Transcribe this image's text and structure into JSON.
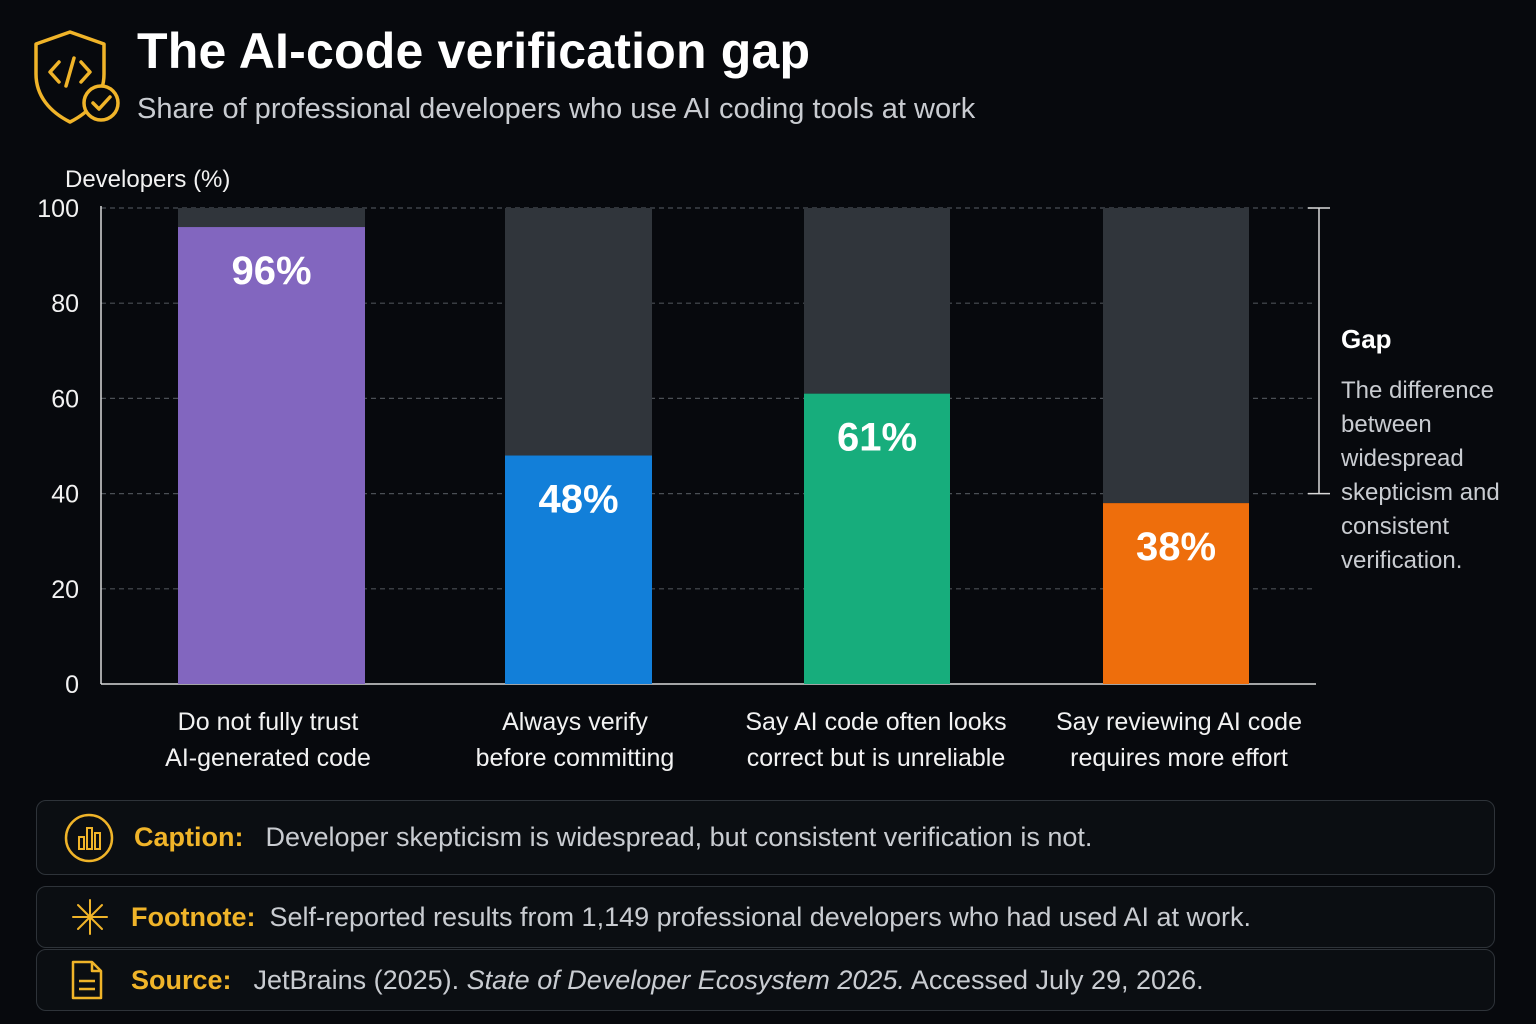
{
  "header": {
    "icon": "shield-code-check-icon",
    "title": "The AI-code verification gap",
    "subtitle": "Share of professional developers who use AI coding tools at work"
  },
  "chart_data": {
    "type": "bar",
    "title": "The AI-code verification gap",
    "subtitle": "Share of professional developers who use AI coding tools at work",
    "ylabel": "Developers (%)",
    "xlabel": "",
    "ylim": [
      0,
      100
    ],
    "yticks": [
      0,
      20,
      40,
      60,
      80,
      100
    ],
    "grid": true,
    "categories": [
      [
        "Do not fully trust",
        "AI-generated code"
      ],
      [
        "Always verify",
        "before committing"
      ],
      [
        "Say AI code often looks",
        "correct but is unreliable"
      ],
      [
        "Say reviewing AI code",
        "requires more effort"
      ]
    ],
    "values": [
      96,
      48,
      61,
      38
    ],
    "value_labels": [
      "96%",
      "48%",
      "61%",
      "38%"
    ],
    "colors": [
      "#8266bf",
      "#127fd9",
      "#17ad7c",
      "#ee6e0c"
    ],
    "remainder_color": "#30353b",
    "annotation": {
      "title": "Gap",
      "text_lines": [
        "The difference",
        "between",
        "widespread",
        "skepticism and",
        "consistent",
        "verification."
      ],
      "range": [
        40,
        100
      ]
    }
  },
  "notes": {
    "caption": {
      "icon": "bar-chart-circle-icon",
      "label": "Caption:",
      "text": "Developer skepticism is widespread, but consistent verification is not."
    },
    "footnote": {
      "icon": "asterisk-icon",
      "label": "Footnote:",
      "text": "Self-reported results from 1,149 professional developers who had used AI at work."
    },
    "source": {
      "icon": "document-icon",
      "label": "Source:",
      "text_before": "JetBrains (2025).",
      "text_italic": "State of Developer Ecosystem 2025.",
      "text_after": "Accessed July 29, 2026."
    }
  }
}
